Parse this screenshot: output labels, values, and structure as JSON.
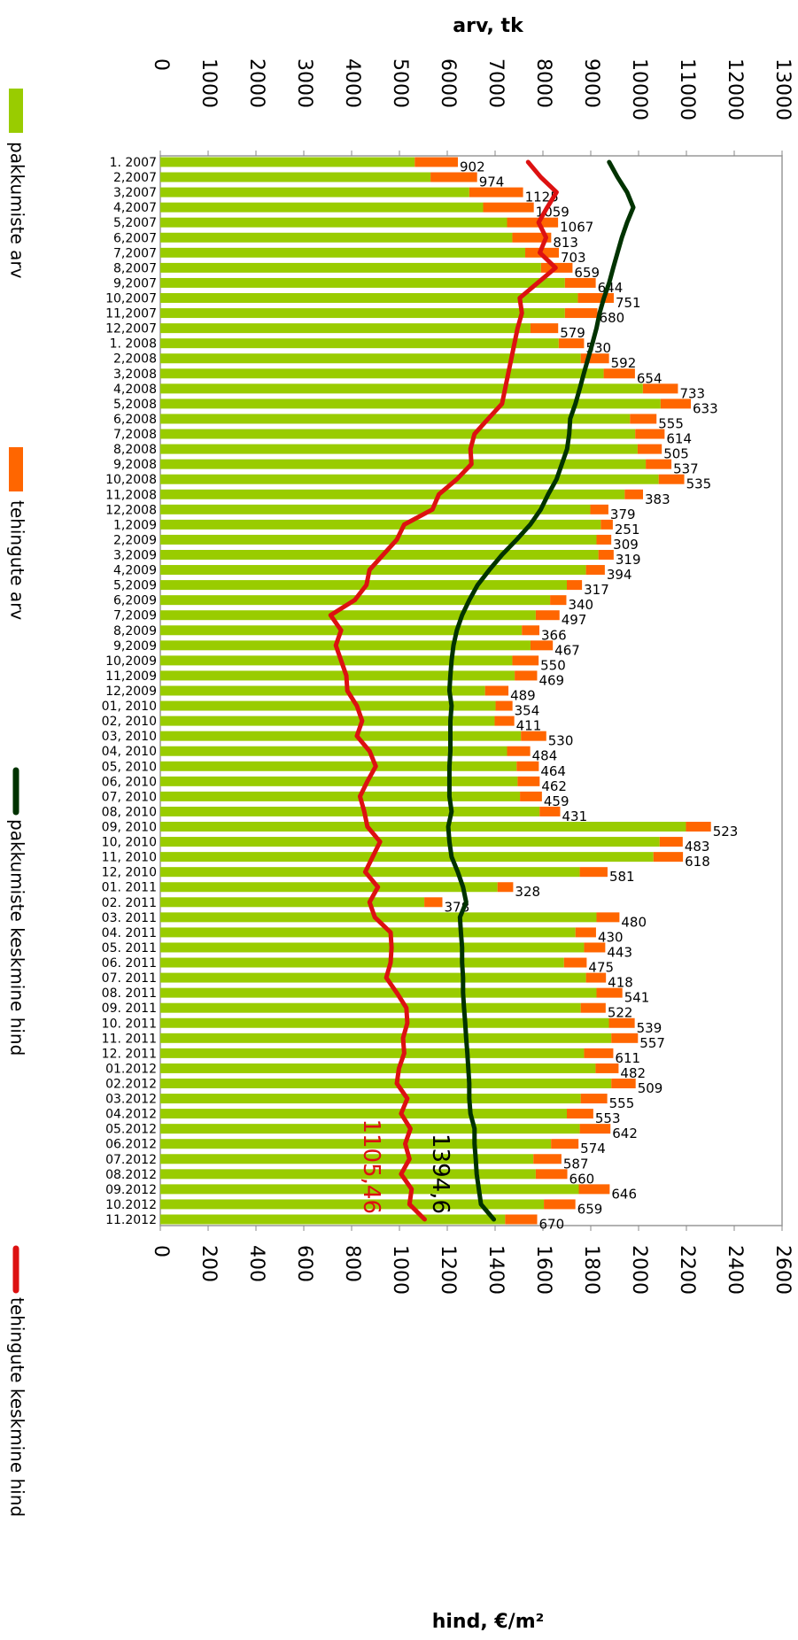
{
  "chart_data": {
    "type": "bar",
    "orientation": "horizontal",
    "stacked": true,
    "x_label": "arv, tk",
    "x2_label": "hind, €/m²",
    "categories": [
      "1. 2007",
      "2,2007",
      "3,2007",
      "4,2007",
      "5,2007",
      "6,2007",
      "7,2007",
      "8,2007",
      "9,2007",
      "10,2007",
      "11,2007",
      "12,2007",
      "1. 2008",
      "2,2008",
      "3,2008",
      "4,2008",
      "5,2008",
      "6,2008",
      "7,2008",
      "8,2008",
      "9,2008",
      "10,2008",
      "11,2008",
      "12,2008",
      "1,2009",
      "2,2009",
      "3,2009",
      "4,2009",
      "5,2009",
      "6,2009",
      "7,2009",
      "8,2009",
      "9,2009",
      "10,2009",
      "11,2009",
      "12,2009",
      "01, 2010",
      "02, 2010",
      "03, 2010",
      "04, 2010",
      "05, 2010",
      "06, 2010",
      "07, 2010",
      "08, 2010",
      "09, 2010",
      "10, 2010",
      "11, 2010",
      "12, 2010",
      "01. 2011",
      "02. 2011",
      "03. 2011",
      "04. 2011",
      "05. 2011",
      "06. 2011",
      "07. 2011",
      "08. 2011",
      "09. 2011",
      "10. 2011",
      "11. 2011",
      "12. 2011",
      "01.2012",
      "02.2012",
      "03.2012",
      "04.2012",
      "05.2012",
      "06.2012",
      "07.2012",
      "08.2012",
      "09.2012",
      "10.2012",
      "11.2012"
    ],
    "xlim": [
      0,
      13000
    ],
    "xticks": [
      0,
      1000,
      2000,
      3000,
      4000,
      5000,
      6000,
      7000,
      8000,
      9000,
      10000,
      11000,
      12000,
      13000
    ],
    "x2lim": [
      0,
      2600
    ],
    "x2ticks": [
      0,
      200,
      400,
      600,
      800,
      1000,
      1200,
      1400,
      1600,
      1800,
      2000,
      2200,
      2400,
      2600
    ],
    "series": [
      {
        "name": "pakkumiste arv",
        "type": "bar",
        "color": "#99cc00",
        "values": [
          5320,
          5650,
          6460,
          6750,
          7250,
          7360,
          7630,
          7960,
          8460,
          8730,
          8460,
          7740,
          8330,
          8790,
          9270,
          10090,
          10460,
          9820,
          9930,
          9980,
          10150,
          10420,
          9710,
          8990,
          9210,
          9120,
          9160,
          8900,
          8500,
          8150,
          7850,
          7560,
          7740,
          7360,
          7410,
          6790,
          7010,
          6990,
          7540,
          7250,
          7450,
          7470,
          7520,
          7930,
          10990,
          10440,
          10310,
          8770,
          7050,
          5520,
          9120,
          8680,
          8860,
          8440,
          8900,
          9120,
          8790,
          9380,
          9430,
          8860,
          9100,
          9430,
          8790,
          8500,
          8770,
          8170,
          7800,
          7850,
          8750,
          8020,
          7210
        ]
      },
      {
        "name": "tehingute arv",
        "type": "bar",
        "color": "#ff6600",
        "show_labels": true,
        "values": [
          902,
          974,
          1125,
          1059,
          1067,
          813,
          703,
          659,
          644,
          751,
          680,
          579,
          530,
          592,
          654,
          733,
          633,
          555,
          614,
          505,
          537,
          535,
          383,
          379,
          251,
          309,
          319,
          394,
          317,
          340,
          497,
          366,
          467,
          550,
          469,
          489,
          354,
          411,
          530,
          484,
          464,
          462,
          459,
          431,
          523,
          483,
          618,
          581,
          328,
          378,
          480,
          430,
          443,
          475,
          418,
          541,
          522,
          539,
          557,
          611,
          482,
          509,
          555,
          553,
          642,
          574,
          587,
          660,
          646,
          659,
          670
        ]
      },
      {
        "name": "pakkumiste keskmine hind",
        "type": "line",
        "axis": "x2",
        "color": "#003300",
        "last_label": "1394,6",
        "values": [
          1877,
          1912,
          1952,
          1978,
          1952,
          1930,
          1912,
          1894,
          1877,
          1855,
          1837,
          1824,
          1807,
          1789,
          1771,
          1754,
          1736,
          1714,
          1710,
          1701,
          1679,
          1657,
          1622,
          1591,
          1547,
          1490,
          1429,
          1376,
          1327,
          1292,
          1262,
          1240,
          1226,
          1218,
          1213,
          1209,
          1218,
          1213,
          1213,
          1213,
          1209,
          1209,
          1209,
          1218,
          1204,
          1209,
          1218,
          1244,
          1266,
          1279,
          1253,
          1257,
          1262,
          1262,
          1266,
          1266,
          1270,
          1275,
          1279,
          1284,
          1288,
          1292,
          1292,
          1297,
          1314,
          1314,
          1319,
          1323,
          1332,
          1341,
          1394.6
        ]
      },
      {
        "name": "tehingute keskmine hind",
        "type": "line",
        "axis": "x2",
        "color": "#dd1111",
        "last_label": "1105,46",
        "values": [
          1538,
          1591,
          1657,
          1618,
          1582,
          1613,
          1587,
          1653,
          1578,
          1503,
          1512,
          1494,
          1481,
          1468,
          1455,
          1442,
          1429,
          1371,
          1314,
          1297,
          1301,
          1240,
          1165,
          1138,
          1020,
          989,
          932,
          875,
          862,
          813,
          712,
          756,
          734,
          756,
          778,
          782,
          822,
          844,
          822,
          875,
          901,
          866,
          835,
          853,
          866,
          919,
          888,
          857,
          910,
          875,
          897,
          963,
          967,
          963,
          945,
          989,
          1029,
          1033,
          1015,
          1020,
          998,
          989,
          1033,
          1007,
          1046,
          1024,
          1042,
          1007,
          1051,
          1042,
          1105.46
        ]
      }
    ]
  }
}
